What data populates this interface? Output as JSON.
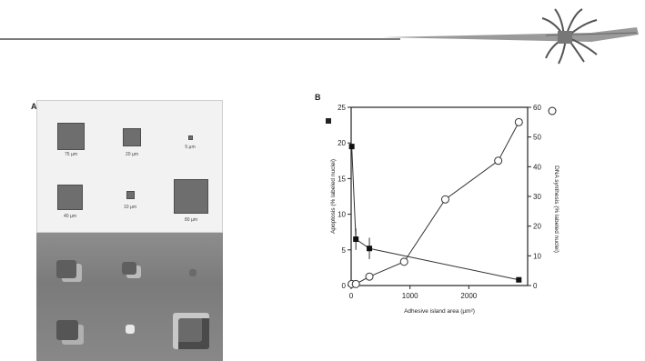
{
  "panel_a": {
    "label": "A",
    "squares": [
      {
        "label": "75 µm"
      },
      {
        "label": "20 µm"
      },
      {
        "label": "5 µm"
      },
      {
        "label": "40 µm"
      },
      {
        "label": "10 µm"
      },
      {
        "label": "80 µm"
      }
    ]
  },
  "chart_data": {
    "type": "scatter",
    "panel_label": "B",
    "xlabel": "Adhesive island area (µm²)",
    "ylabel_left": "Apoptosis (% labeled nuclei)",
    "ylabel_right": "DNA synthesis (% labeled nuclei)",
    "xlim": [
      0,
      3000
    ],
    "ylim_left": [
      0,
      25
    ],
    "ylim_right": [
      0,
      60
    ],
    "x_ticks": [
      0,
      1000,
      2000
    ],
    "y_ticks_left": [
      0,
      5,
      10,
      15,
      20,
      25
    ],
    "y_ticks_right": [
      0,
      10,
      20,
      30,
      40,
      50,
      60
    ],
    "series": [
      {
        "marker": "filled-square",
        "axis": "left",
        "x": [
          10,
          80,
          310,
          2850
        ],
        "y": [
          19.5,
          6.5,
          5.2,
          0.8
        ],
        "err": [
          0,
          1.5,
          1.5,
          0
        ]
      },
      {
        "marker": "open-circle",
        "axis": "right",
        "x": [
          10,
          80,
          310,
          900,
          1600,
          2500,
          2850
        ],
        "y": [
          0.5,
          0.5,
          3,
          8,
          29,
          42,
          55
        ]
      }
    ]
  }
}
